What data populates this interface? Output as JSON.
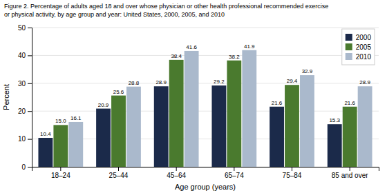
{
  "chart_data": {
    "type": "bar",
    "title": "Figure 2. Percentage of adults aged 18 and over whose physician or other health professional recommended exercise",
    "subtitle": "or physical activity, by age group and year: United States, 2000, 2005, and 2010",
    "x_label": "Age group (years)",
    "y_label": "Percent",
    "categories": [
      "18–24",
      "25–44",
      "45–64",
      "65–74",
      "75–84",
      "85 and over"
    ],
    "series": [
      {
        "name": "2000",
        "color": "#1b2a4a",
        "values": [
          10.4,
          20.9,
          28.9,
          29.2,
          21.6,
          15.3
        ],
        "value_labels": [
          "10.4",
          "20.9",
          "28.9",
          "29.2",
          "21.6",
          "15.3"
        ]
      },
      {
        "name": "2005",
        "color": "#4a7a2e",
        "values": [
          15.0,
          25.6,
          38.4,
          38.2,
          29.4,
          21.6
        ],
        "value_labels": [
          "15.0",
          "25.6",
          "38.4",
          "38.2",
          "29.4",
          "21.6"
        ]
      },
      {
        "name": "2010",
        "color": "#aab9cc",
        "values": [
          16.1,
          28.8,
          41.6,
          41.9,
          32.9,
          28.9
        ],
        "value_labels": [
          "16.1",
          "28.8",
          "41.6",
          "41.9",
          "32.9",
          "28.9"
        ]
      }
    ],
    "ylim": [
      0,
      50
    ],
    "yticks": [
      0,
      10,
      20,
      30,
      40,
      50
    ],
    "grid": true,
    "legend": "upper right",
    "data_labels": true
  }
}
